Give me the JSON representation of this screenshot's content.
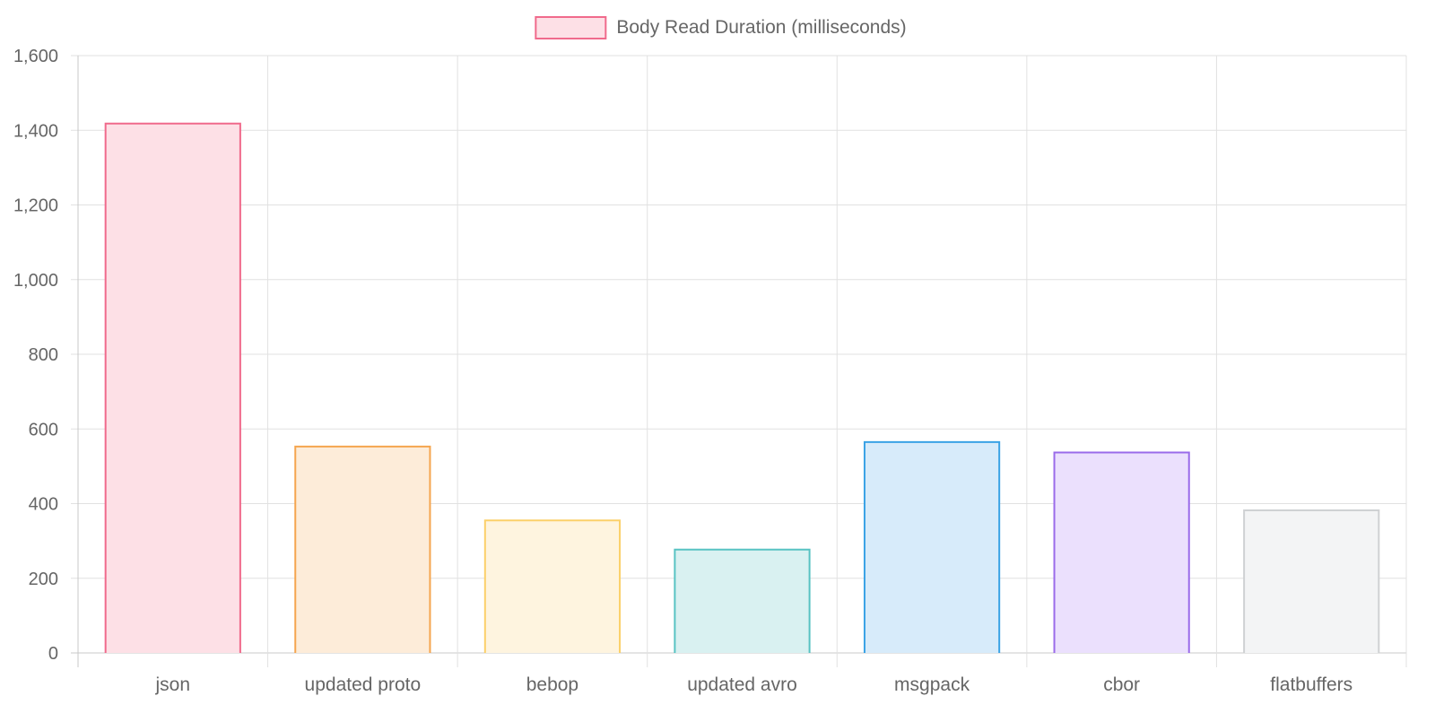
{
  "chart_data": {
    "type": "bar",
    "categories": [
      "json",
      "updated proto",
      "bebop",
      "updated avro",
      "msgpack",
      "cbor",
      "flatbuffers"
    ],
    "series": [
      {
        "name": "Body Read Duration (milliseconds)",
        "values": [
          1418,
          553,
          355,
          277,
          565,
          537,
          382
        ]
      }
    ],
    "title": "",
    "xlabel": "",
    "ylabel": "",
    "ylim": [
      0,
      1600
    ],
    "yticks": [
      0,
      200,
      400,
      600,
      800,
      1000,
      1200,
      1400,
      1600
    ],
    "ytick_labels": [
      "0",
      "200",
      "400",
      "600",
      "800",
      "1,000",
      "1,200",
      "1,400",
      "1,600"
    ],
    "grid": true,
    "legend_position": "top-center",
    "legend": {
      "fill": "#fde0e6",
      "stroke": "#f06a8c"
    },
    "bar_fills": [
      "#fde0e6",
      "#fdecd9",
      "#fef4df",
      "#d9f1f1",
      "#d7ebfa",
      "#ebe0fd",
      "#f3f4f5"
    ],
    "bar_strokes": [
      "#f06a8c",
      "#f5a54f",
      "#fbd06a",
      "#58c3c3",
      "#3aa2e5",
      "#9a6bea",
      "#cfd1d3"
    ],
    "grid_color": "#e1e1e1",
    "axis_color": "#c8c8c8"
  }
}
